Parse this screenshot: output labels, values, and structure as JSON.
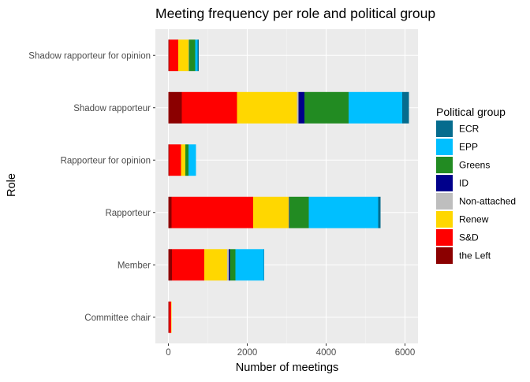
{
  "chart_data": {
    "type": "bar",
    "orientation": "horizontal",
    "stacked": true,
    "title": "Meeting frequency per role and political group",
    "xlabel": "Number of meetings",
    "ylabel": "Role",
    "xlim": [
      -330,
      6330
    ],
    "xticks": [
      0,
      2000,
      4000,
      6000
    ],
    "xtick_labels": [
      "0",
      "2000",
      "4000",
      "6000"
    ],
    "grid": true,
    "legend_title": "Political group",
    "legend_position": "right",
    "categories": [
      "Shadow rapporteur for opinion",
      "Shadow rapporteur",
      "Rapporteur for opinion",
      "Rapporteur",
      "Member",
      "Committee chair"
    ],
    "series": [
      {
        "name": "ECR",
        "color": "#056C8E",
        "values": [
          30,
          170,
          0,
          60,
          10,
          0
        ]
      },
      {
        "name": "EPP",
        "color": "#00BFFF",
        "values": [
          60,
          1360,
          190,
          1760,
          720,
          0
        ]
      },
      {
        "name": "Greens",
        "color": "#228B22",
        "values": [
          160,
          1120,
          80,
          490,
          140,
          0
        ]
      },
      {
        "name": "ID",
        "color": "#00008B",
        "values": [
          0,
          150,
          0,
          10,
          30,
          0
        ]
      },
      {
        "name": "Non-attached",
        "color": "#BEBEBE",
        "values": [
          10,
          40,
          0,
          10,
          40,
          0
        ]
      },
      {
        "name": "Renew",
        "color": "#FFD700",
        "values": [
          260,
          1520,
          110,
          900,
          580,
          10
        ]
      },
      {
        "name": "S&D",
        "color": "#FF0000",
        "values": [
          230,
          1400,
          300,
          2070,
          820,
          50
        ]
      },
      {
        "name": "the Left",
        "color": "#8B0000",
        "values": [
          20,
          340,
          20,
          80,
          90,
          20
        ]
      }
    ]
  }
}
